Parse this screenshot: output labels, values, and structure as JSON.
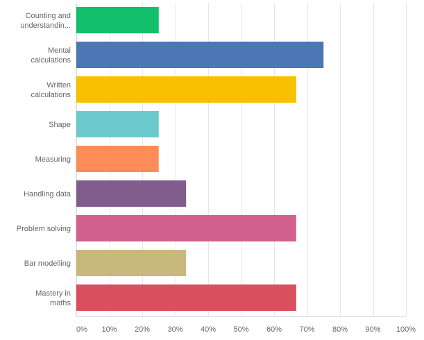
{
  "chart_data": {
    "type": "bar",
    "orientation": "horizontal",
    "categories": [
      [
        "Counting and",
        "understandin..."
      ],
      [
        "Mental",
        "calculations"
      ],
      [
        "Written",
        "calculations"
      ],
      [
        "Shape"
      ],
      [
        "Measuring"
      ],
      [
        "Handling data"
      ],
      [
        "Problem solving"
      ],
      [
        "Bar modelling"
      ],
      [
        "Mastery in",
        "maths"
      ]
    ],
    "values": [
      25,
      75,
      66.7,
      25,
      25,
      33.3,
      66.7,
      33.3,
      66.7
    ],
    "colors": [
      "#12bf6d",
      "#4b78b4",
      "#f8c000",
      "#6bcbcc",
      "#fe8c58",
      "#805d8d",
      "#d1608f",
      "#c9b87c",
      "#da4f5e"
    ],
    "xlim": [
      0,
      100
    ],
    "x_ticks": [
      "0%",
      "10%",
      "20%",
      "30%",
      "40%",
      "50%",
      "60%",
      "70%",
      "80%",
      "90%",
      "100%"
    ],
    "grid": true,
    "gridline_color": "#e6e6e6",
    "title": "",
    "xlabel": "",
    "ylabel": ""
  }
}
